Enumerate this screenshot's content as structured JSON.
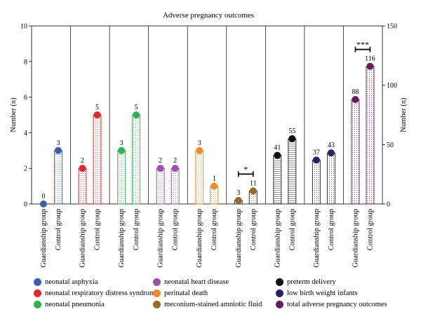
{
  "chart_data": {
    "type": "bar",
    "title": "Adverse pregnancy outcomes",
    "ylabel_left": "Number (n)",
    "ylabel_right": "Number (n)",
    "ylim_left": [
      0,
      10
    ],
    "yticks_left": [
      "0",
      "2",
      "4",
      "6",
      "8",
      "10"
    ],
    "ylim_right": [
      0,
      150
    ],
    "yticks_right": [
      "0",
      "50",
      "100",
      "150"
    ],
    "categories": [
      "Guardianship group",
      "Control group"
    ],
    "groups": [
      {
        "name": "neonatal asphyxia",
        "color": "#3a5fb0",
        "axis": "left",
        "values": [
          0,
          3
        ],
        "labels": [
          "0",
          "3"
        ]
      },
      {
        "name": "neonatal respiratory distress syndrome",
        "color": "#e8262a",
        "axis": "left",
        "values": [
          2,
          5
        ],
        "labels": [
          "2",
          "5"
        ]
      },
      {
        "name": "neonatal pneumonia",
        "color": "#2db34a",
        "axis": "left",
        "values": [
          3,
          5
        ],
        "labels": [
          "3",
          "5"
        ]
      },
      {
        "name": "neonatal heart disease",
        "color": "#9b4fb0",
        "axis": "left",
        "values": [
          2,
          2
        ],
        "labels": [
          "2",
          "2"
        ]
      },
      {
        "name": "perinatal death",
        "color": "#f28a2a",
        "axis": "left",
        "values": [
          3,
          1
        ],
        "labels": [
          "3",
          "1"
        ]
      },
      {
        "name": "meconium-stained amniotic fluid",
        "color": "#9a6a2a",
        "axis": "right",
        "values": [
          3,
          11
        ],
        "labels": [
          "3",
          "11"
        ],
        "significance": "*"
      },
      {
        "name": "preterm delivery",
        "color": "#111111",
        "axis": "right",
        "values": [
          41,
          55
        ],
        "labels": [
          "41",
          "55"
        ]
      },
      {
        "name": "low birth weight infants",
        "color": "#23236b",
        "axis": "right",
        "values": [
          37,
          43
        ],
        "labels": [
          "37",
          "43"
        ]
      },
      {
        "name": "total adverse pregnancy outcomes",
        "color": "#6b1a55",
        "axis": "right",
        "values": [
          88,
          116
        ],
        "labels": [
          "88",
          "116"
        ],
        "significance": "***"
      }
    ],
    "grid": false,
    "legend_position": "bottom"
  }
}
